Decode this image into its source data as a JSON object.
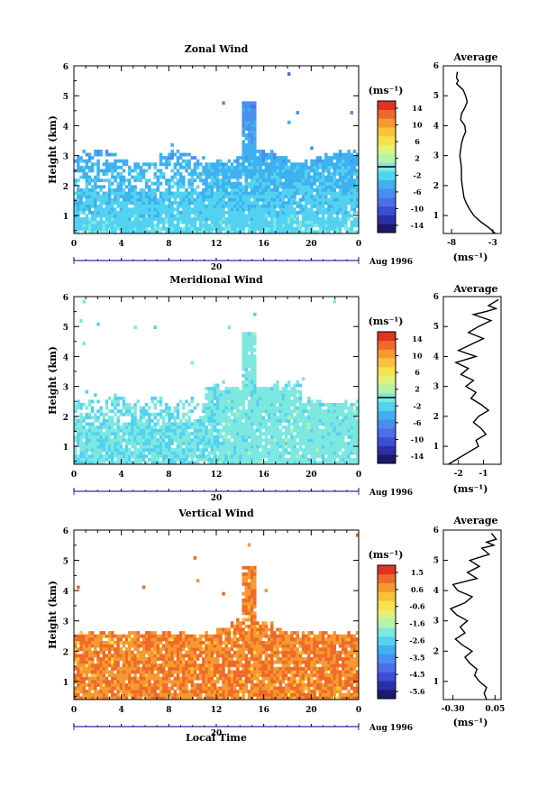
{
  "figure": {
    "xlabel": "Local Time",
    "date_label": "Aug 1996",
    "day_label": "20"
  },
  "chart_data": [
    {
      "type": "heatmap",
      "title": "Zonal Wind",
      "xlabel": "",
      "ylabel": "Height (km)",
      "x_ticks": [
        "0",
        "4",
        "8",
        "12",
        "16",
        "20",
        "0"
      ],
      "y_ticks": [
        "1",
        "2",
        "3",
        "4",
        "5",
        "6"
      ],
      "xlim": [
        0,
        24
      ],
      "ylim": [
        0.4,
        6
      ],
      "colorbar": {
        "unit": "(ms⁻¹)",
        "ticks": [
          "14",
          "10",
          "6",
          "2",
          "-2",
          "-6",
          "-10",
          "-14"
        ],
        "range": [
          -16,
          16
        ],
        "colors": [
          "#1c1a6b",
          "#2b2fa8",
          "#3a4fd6",
          "#4b6fe8",
          "#4a8ef0",
          "#3fb0f0",
          "#52d2f0",
          "#7de8e0",
          "#b6f2a8",
          "#e0f27a",
          "#f7e24a",
          "#fbc23c",
          "#f59a30",
          "#ef6a28",
          "#e0341f"
        ]
      },
      "field": {
        "min": -9,
        "max": 1
      },
      "contour_level": 0
    },
    {
      "type": "line",
      "title": "Average",
      "xlabel": "(ms⁻¹)",
      "x_ticks": [
        "-8",
        "-3"
      ],
      "y_ticks": [
        "1",
        "2",
        "3",
        "4",
        "5",
        "6"
      ],
      "xlim": [
        -9,
        -2
      ],
      "ylim": [
        0.4,
        6
      ],
      "x": [
        -2.7,
        -3.5,
        -4.5,
        -5.3,
        -5.8,
        -6.2,
        -6.5,
        -6.6,
        -6.7,
        -6.8,
        -6.8,
        -6.8,
        -6.9,
        -7.0,
        -6.9,
        -6.8,
        -6.6,
        -6.3,
        -6.4,
        -6.9,
        -6.8,
        -6.4,
        -6.1,
        -6.3,
        -6.6,
        -7.0,
        -7.4,
        -7.2,
        -7.4,
        -7.3
      ],
      "y": [
        0.4,
        0.6,
        0.8,
        1.0,
        1.2,
        1.4,
        1.6,
        1.8,
        2.0,
        2.2,
        2.4,
        2.6,
        2.8,
        3.0,
        3.2,
        3.4,
        3.6,
        3.8,
        4.0,
        4.2,
        4.4,
        4.6,
        4.8,
        5.0,
        5.2,
        5.3,
        5.4,
        5.5,
        5.6,
        5.8
      ]
    },
    {
      "type": "heatmap",
      "title": "Meridional Wind",
      "xlabel": "",
      "ylabel": "Height (km)",
      "x_ticks": [
        "0",
        "4",
        "8",
        "12",
        "16",
        "20",
        "0"
      ],
      "y_ticks": [
        "1",
        "2",
        "3",
        "4",
        "5",
        "6"
      ],
      "xlim": [
        0,
        24
      ],
      "ylim": [
        0.4,
        6
      ],
      "colorbar": {
        "unit": "(ms⁻¹)",
        "ticks": [
          "14",
          "10",
          "6",
          "2",
          "-2",
          "-6",
          "-10",
          "-14"
        ],
        "range": [
          -16,
          16
        ],
        "colors": [
          "#1c1a6b",
          "#2b2fa8",
          "#3a4fd6",
          "#4b6fe8",
          "#4a8ef0",
          "#3fb0f0",
          "#52d2f0",
          "#7de8e0",
          "#b6f2a8",
          "#e0f27a",
          "#f7e24a",
          "#fbc23c",
          "#f59a30",
          "#ef6a28",
          "#e0341f"
        ]
      },
      "field": {
        "min": -4,
        "max": 2
      },
      "contour_level": 0
    },
    {
      "type": "line",
      "title": "Average",
      "xlabel": "(ms⁻¹)",
      "x_ticks": [
        "-2",
        "-1"
      ],
      "y_ticks": [
        "1",
        "2",
        "3",
        "4",
        "5",
        "6"
      ],
      "xlim": [
        -2.6,
        -0.3
      ],
      "ylim": [
        0.4,
        6
      ],
      "x": [
        -2.4,
        -2.0,
        -1.6,
        -1.2,
        -1.3,
        -0.9,
        -1.1,
        -1.4,
        -1.2,
        -0.8,
        -1.1,
        -1.5,
        -1.3,
        -1.7,
        -1.4,
        -1.9,
        -1.6,
        -2.1,
        -1.3,
        -2.0,
        -1.5,
        -1.0,
        -1.6,
        -1.2,
        -0.7,
        -1.4,
        -0.9,
        -0.5,
        -0.8,
        -0.4
      ],
      "y": [
        0.4,
        0.6,
        0.8,
        1.0,
        1.2,
        1.4,
        1.6,
        1.8,
        2.0,
        2.2,
        2.4,
        2.6,
        2.8,
        3.0,
        3.2,
        3.4,
        3.6,
        3.8,
        4.0,
        4.2,
        4.4,
        4.6,
        4.8,
        5.0,
        5.2,
        5.4,
        5.5,
        5.6,
        5.7,
        5.9
      ]
    },
    {
      "type": "heatmap",
      "title": "Vertical Wind",
      "xlabel": "",
      "ylabel": "Height (km)",
      "x_ticks": [
        "0",
        "4",
        "8",
        "12",
        "16",
        "20",
        "0"
      ],
      "y_ticks": [
        "1",
        "2",
        "3",
        "4",
        "5",
        "6"
      ],
      "xlim": [
        0,
        24
      ],
      "ylim": [
        0.4,
        6
      ],
      "colorbar": {
        "unit": "(ms⁻¹)",
        "ticks": [
          "1.5",
          "0.6",
          "-0.6",
          "-1.6",
          "-2.6",
          "-3.5",
          "-4.5",
          "-5.6"
        ],
        "range": [
          -6,
          2
        ],
        "colors": [
          "#1c1a6b",
          "#2b2fa8",
          "#3a4fd6",
          "#4b6fe8",
          "#4a8ef0",
          "#3fb0f0",
          "#52d2f0",
          "#7de8e0",
          "#b6f2a8",
          "#e0f27a",
          "#f7e24a",
          "#fbc23c",
          "#f59a30",
          "#ef6a28",
          "#e0341f"
        ]
      },
      "field": {
        "min": -0.6,
        "max": 1.6
      }
    },
    {
      "type": "line",
      "title": "Average",
      "xlabel": "(ms⁻¹)",
      "x_ticks": [
        "-0.30",
        "0.05"
      ],
      "y_ticks": [
        "1",
        "2",
        "3",
        "4",
        "5",
        "6"
      ],
      "xlim": [
        -0.38,
        0.1
      ],
      "ylim": [
        0.4,
        6
      ],
      "x": [
        -0.02,
        -0.04,
        -0.02,
        -0.08,
        -0.12,
        -0.1,
        -0.16,
        -0.2,
        -0.14,
        -0.22,
        -0.28,
        -0.2,
        -0.24,
        -0.18,
        -0.27,
        -0.32,
        -0.2,
        -0.14,
        -0.26,
        -0.3,
        -0.1,
        -0.18,
        -0.08,
        -0.16,
        0.0,
        -0.06,
        0.04,
        -0.02,
        0.06,
        0.02
      ],
      "y": [
        0.4,
        0.6,
        0.8,
        1.0,
        1.2,
        1.4,
        1.6,
        1.8,
        2.0,
        2.2,
        2.4,
        2.6,
        2.8,
        3.0,
        3.2,
        3.4,
        3.6,
        3.8,
        4.0,
        4.2,
        4.4,
        4.6,
        4.8,
        5.0,
        5.2,
        5.4,
        5.5,
        5.6,
        5.7,
        5.9
      ]
    }
  ]
}
